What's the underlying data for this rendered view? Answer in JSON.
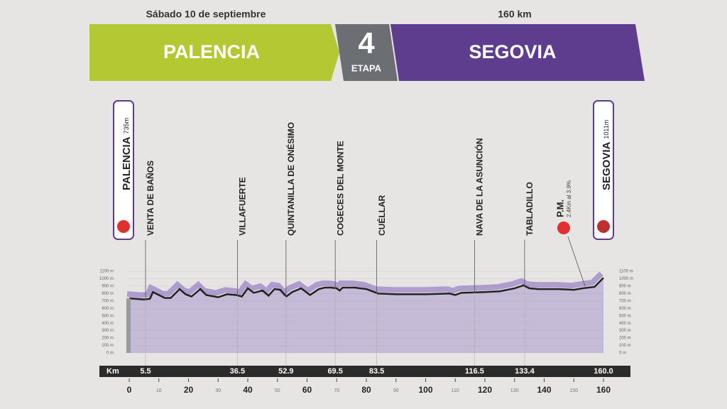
{
  "header": {
    "date": "Sábado 10 de septiembre",
    "distance": "160 km",
    "start": "PALENCIA",
    "stage": "4",
    "stage_label": "ETAPA",
    "finish": "SEGOVIA"
  },
  "chart_data": {
    "type": "area",
    "x": [
      0,
      5,
      7,
      8,
      10,
      12,
      14,
      17,
      19,
      21,
      24,
      26,
      30,
      33,
      36,
      38,
      40,
      42,
      45,
      47,
      49,
      51,
      53,
      55,
      58,
      61,
      64,
      66,
      68,
      70,
      71,
      72,
      76,
      80,
      84,
      90,
      100,
      108,
      110,
      112,
      120,
      125,
      130,
      133,
      135,
      138,
      145,
      150,
      153,
      157,
      160
    ],
    "series": [
      {
        "color": "#8a6cc0",
        "values": [
          735,
          720,
          730,
          820,
          780,
          740,
          740,
          860,
          790,
          760,
          860,
          780,
          750,
          790,
          780,
          760,
          870,
          810,
          840,
          770,
          860,
          850,
          760,
          820,
          870,
          780,
          860,
          880,
          880,
          870,
          840,
          880,
          880,
          860,
          800,
          790,
          790,
          800,
          780,
          810,
          820,
          830,
          870,
          910,
          870,
          860,
          860,
          850,
          870,
          890,
          1011
        ]
      }
    ],
    "xlim": [
      0,
      160
    ],
    "xticks": [
      0,
      10,
      20,
      30,
      40,
      50,
      60,
      70,
      80,
      90,
      100,
      110,
      120,
      130,
      140,
      150,
      160
    ],
    "ylim": [
      0,
      1100
    ],
    "yticks": [
      {
        "value": 0,
        "label": "0 m"
      },
      {
        "value": 100,
        "label": "100 m"
      },
      {
        "value": 200,
        "label": "200 m"
      },
      {
        "value": 300,
        "label": "300 m"
      },
      {
        "value": 400,
        "label": "400 m"
      },
      {
        "value": 500,
        "label": "500 m"
      },
      {
        "value": 600,
        "label": "600 m"
      },
      {
        "value": 700,
        "label": "700 m"
      },
      {
        "value": 800,
        "label": "800 m"
      },
      {
        "value": 900,
        "label": "900 m"
      },
      {
        "value": 1000,
        "label": "1000 m"
      },
      {
        "value": 1100,
        "label": "1100 m"
      }
    ],
    "km_label": "Km",
    "start": {
      "name": "PALENCIA",
      "altitude": "735m"
    },
    "finish": {
      "name": "SEGOVIA",
      "altitude": "1011m",
      "km": {
        "value": 160,
        "label": "160.0"
      }
    },
    "checkpoints": [
      {
        "name": "VENTA DE BAÑOS",
        "km": 5.5
      },
      {
        "name": "VILLAFUERTE",
        "km": 36.5
      },
      {
        "name": "QUINTANILLA DE ONÉSIMO",
        "km": 52.9
      },
      {
        "name": "COGECES DEL MONTE",
        "km": 69.5
      },
      {
        "name": "CUÉLLAR",
        "km": 83.5
      },
      {
        "name": "NAVA DE LA ASUNCIÓN",
        "km": 116.5
      },
      {
        "name": "TABLADILLO",
        "km": 133.4
      }
    ],
    "mountain": {
      "name": "P.M.",
      "detail": "2.4Km al 3.9%",
      "km": 154
    }
  }
}
